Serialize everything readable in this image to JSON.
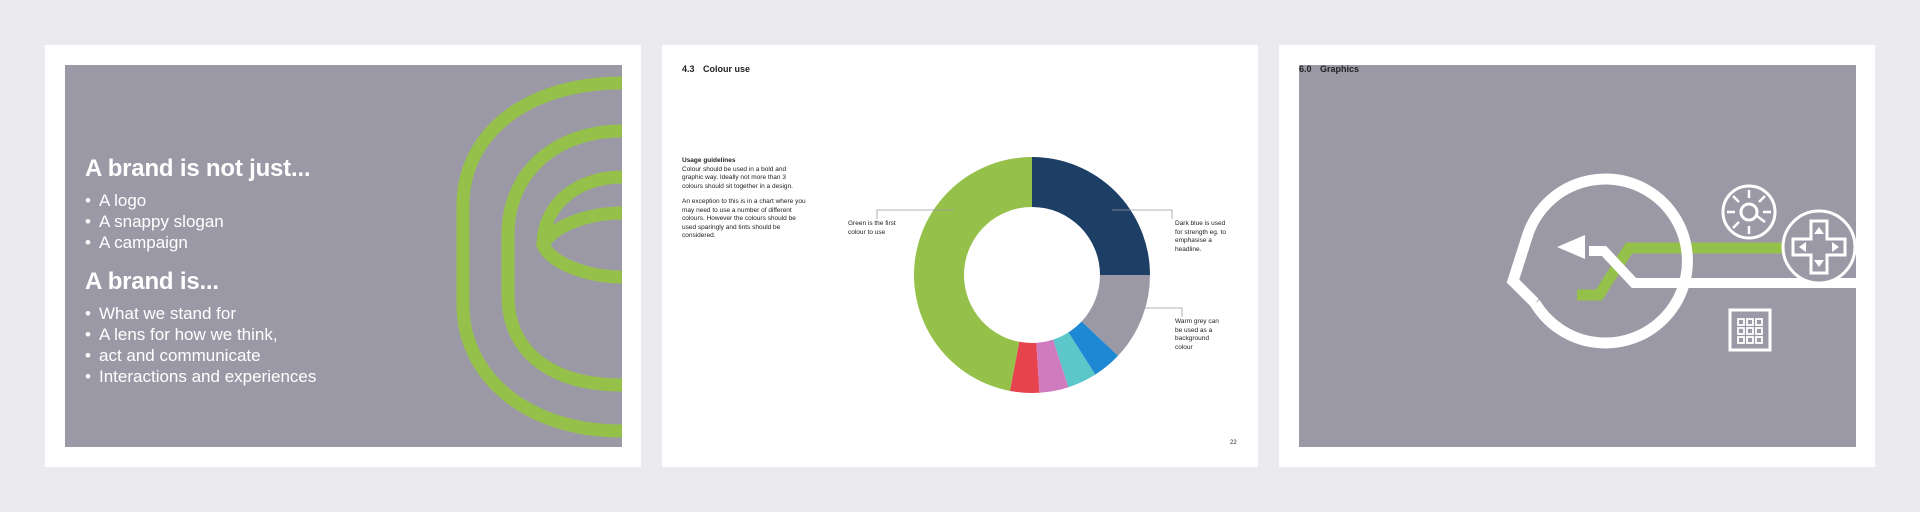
{
  "slide1": {
    "heading1": "A brand is not just...",
    "list1": [
      "A logo",
      "A snappy slogan",
      "A campaign"
    ],
    "heading2": "A brand is...",
    "list2": [
      "What we stand for",
      "A lens for how we think,",
      "act and communicate",
      "Interactions and experiences"
    ]
  },
  "slide2": {
    "section_number": "4.3",
    "section_title": "Colour use",
    "guidelines_title": "Usage guidelines",
    "guidelines_text_1": "Colour should be used in a bold and graphic way. Ideally not more than 3 colours should sit together in a design.",
    "guidelines_text_2": "An exception to this is in a chart where you may need to use a number of different colours. However the colours should be used sparingly and tints should be considered.",
    "label_green": "Green is the first colour to use",
    "label_darkblue": "Dark blue is used for strength eg. to emphasise a headline.",
    "label_grey": "Warm grey can be used as a background colour",
    "page_number": "22"
  },
  "slide3": {
    "section_number": "6.0",
    "section_title": "Graphics"
  },
  "chart_data": {
    "type": "pie",
    "categories": [
      "Dark blue",
      "Warm grey",
      "Blue",
      "Teal",
      "Pink",
      "Red",
      "Green"
    ],
    "values": [
      25,
      12,
      4,
      4,
      4,
      4,
      47
    ],
    "colors": [
      "#1d3f66",
      "#9b99a6",
      "#1e88d4",
      "#5bc7c9",
      "#d17bbf",
      "#e7434f",
      "#95c14a"
    ]
  },
  "colors": {
    "brand_green": "#95c14a",
    "panel_grey": "#9b99a6"
  }
}
